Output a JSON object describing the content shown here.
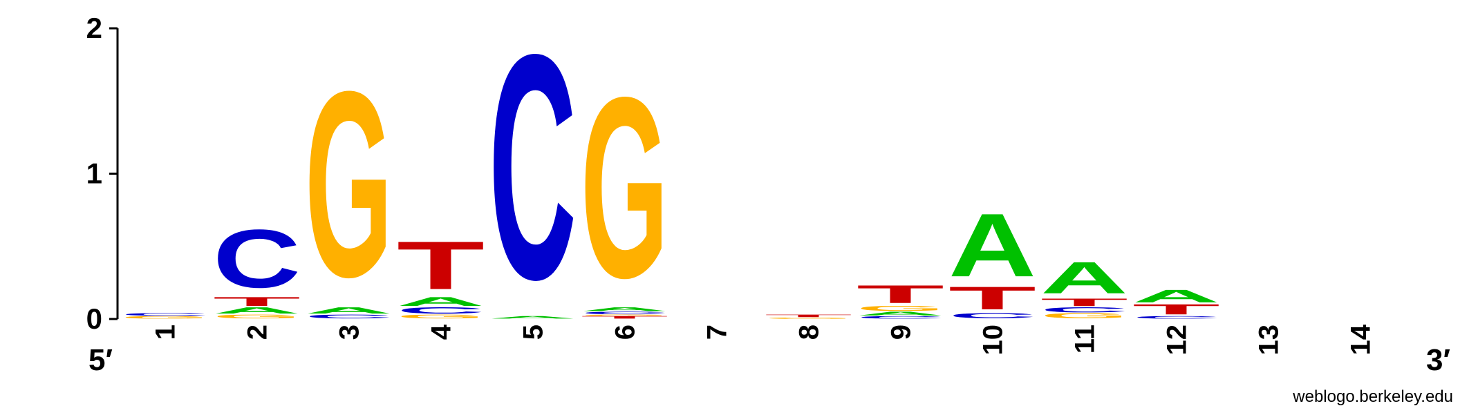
{
  "chart_data": {
    "type": "sequence-logo",
    "title": "",
    "xlabel": "",
    "ylabel": "",
    "ylim": [
      0,
      2
    ],
    "yticks": [
      "0",
      "1",
      "2"
    ],
    "end_labels": {
      "left": "5′",
      "right": "3′"
    },
    "credit": "weblogo.berkeley.edu",
    "colors": {
      "A": "#00c000",
      "C": "#0000cc",
      "G": "#ffb000",
      "T": "#cc0000"
    },
    "positions": [
      {
        "label": "1",
        "stack": [
          {
            "letter": "G",
            "bits": 0.02
          },
          {
            "letter": "C",
            "bits": 0.02
          }
        ]
      },
      {
        "label": "2",
        "stack": [
          {
            "letter": "G",
            "bits": 0.03
          },
          {
            "letter": "A",
            "bits": 0.05
          },
          {
            "letter": "T",
            "bits": 0.07
          },
          {
            "letter": "C",
            "bits": 0.46
          }
        ]
      },
      {
        "label": "3",
        "stack": [
          {
            "letter": "C",
            "bits": 0.03
          },
          {
            "letter": "A",
            "bits": 0.05
          },
          {
            "letter": "G",
            "bits": 1.47
          }
        ]
      },
      {
        "label": "4",
        "stack": [
          {
            "letter": "G",
            "bits": 0.03
          },
          {
            "letter": "C",
            "bits": 0.05
          },
          {
            "letter": "A",
            "bits": 0.07
          },
          {
            "letter": "T",
            "bits": 0.38
          }
        ]
      },
      {
        "label": "5",
        "stack": [
          {
            "letter": "A",
            "bits": 0.02
          },
          {
            "letter": "C",
            "bits": 1.78
          }
        ]
      },
      {
        "label": "6",
        "stack": [
          {
            "letter": "T",
            "bits": 0.02
          },
          {
            "letter": "G",
            "bits": 0.01
          },
          {
            "letter": "C",
            "bits": 0.02
          },
          {
            "letter": "A",
            "bits": 0.03
          },
          {
            "letter": "G",
            "bits": 1.43
          }
        ]
      },
      {
        "label": "7",
        "stack": []
      },
      {
        "label": "8",
        "stack": [
          {
            "letter": "G",
            "bits": 0.01
          },
          {
            "letter": "T",
            "bits": 0.02
          }
        ]
      },
      {
        "label": "9",
        "stack": [
          {
            "letter": "C",
            "bits": 0.02
          },
          {
            "letter": "A",
            "bits": 0.03
          },
          {
            "letter": "G",
            "bits": 0.04
          },
          {
            "letter": "T",
            "bits": 0.14
          }
        ]
      },
      {
        "label": "10",
        "stack": [
          {
            "letter": "C",
            "bits": 0.04
          },
          {
            "letter": "T",
            "bits": 0.18
          },
          {
            "letter": "A",
            "bits": 0.5
          }
        ]
      },
      {
        "label": "11",
        "stack": [
          {
            "letter": "G",
            "bits": 0.04
          },
          {
            "letter": "C",
            "bits": 0.04
          },
          {
            "letter": "T",
            "bits": 0.06
          },
          {
            "letter": "A",
            "bits": 0.25
          }
        ]
      },
      {
        "label": "12",
        "stack": [
          {
            "letter": "C",
            "bits": 0.02
          },
          {
            "letter": "T",
            "bits": 0.08
          },
          {
            "letter": "A",
            "bits": 0.1
          }
        ]
      },
      {
        "label": "13",
        "stack": []
      },
      {
        "label": "14",
        "stack": []
      }
    ]
  }
}
